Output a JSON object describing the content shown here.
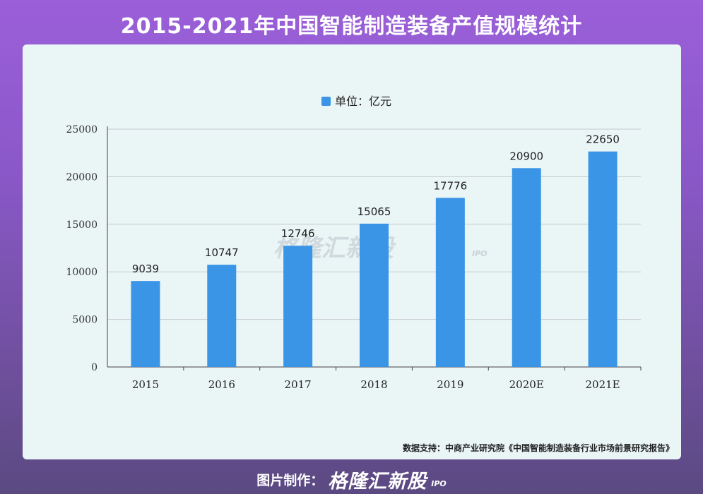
{
  "page": {
    "title": "2015-2021年中国智能制造装备产值规模统计",
    "source": "数据支持：中商产业研究院《中国智能制造装备行业市场前景研究报告》",
    "footer_label": "图片制作：",
    "footer_logo": "格隆汇新股",
    "footer_logo_sub": "IPO",
    "watermark": "格隆汇新股",
    "watermark_sub": "IPO"
  },
  "colors": {
    "bar": "#3a95e6",
    "grid": "#c4c9cf",
    "axis": "#444444",
    "card": "#eaf5f6"
  },
  "chart_data": {
    "type": "bar",
    "categories": [
      "2015",
      "2016",
      "2017",
      "2018",
      "2019",
      "2020E",
      "2021E"
    ],
    "series": [
      {
        "name": "单位：亿元",
        "values": [
          9039,
          10747,
          12746,
          15065,
          17776,
          20900,
          22650
        ]
      }
    ],
    "ylim": [
      0,
      25000
    ],
    "yticks": [
      0,
      5000,
      10000,
      15000,
      20000,
      25000
    ],
    "grid": true,
    "legend": "top-center",
    "data_labels": true
  }
}
